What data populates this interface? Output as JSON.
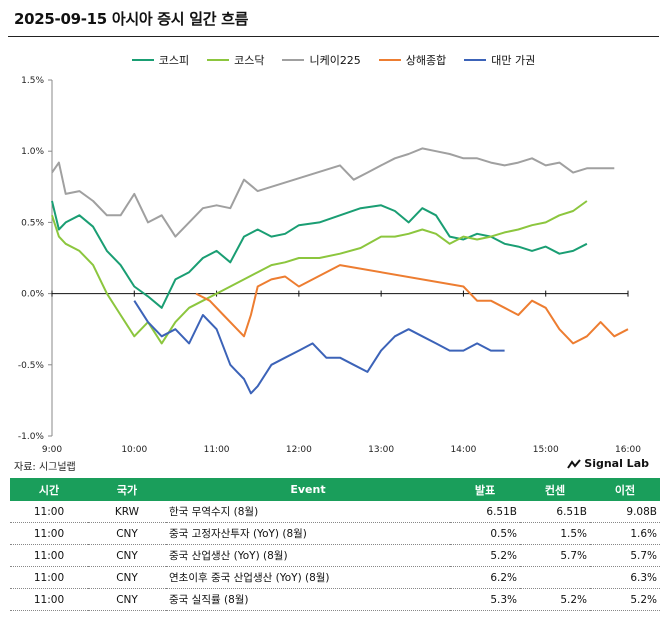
{
  "title": "2025-09-15 아시아 증시 일간 흐름",
  "source": "자료: 시그널랩",
  "brand": "Signal Lab",
  "chart_data": {
    "type": "line",
    "title": "",
    "xlabel": "",
    "ylabel": "",
    "xlim": [
      "9:00",
      "16:00"
    ],
    "ylim": [
      -1.0,
      1.5
    ],
    "x_ticks": [
      "9:00",
      "10:00",
      "11:00",
      "12:00",
      "13:00",
      "14:00",
      "15:00",
      "16:00"
    ],
    "y_ticks": [
      "1.5%",
      "1.0%",
      "0.5%",
      "0.0%",
      "-0.5%",
      "-1.0%"
    ],
    "legend": "top",
    "series": [
      {
        "name": "코스피",
        "color": "#1a9e73",
        "x": [
          "9:00",
          "9:05",
          "9:10",
          "9:20",
          "9:30",
          "9:40",
          "9:50",
          "10:00",
          "10:10",
          "10:20",
          "10:30",
          "10:40",
          "10:50",
          "11:00",
          "11:10",
          "11:20",
          "11:30",
          "11:40",
          "11:50",
          "12:00",
          "12:15",
          "12:30",
          "12:45",
          "13:00",
          "13:10",
          "13:20",
          "13:30",
          "13:40",
          "13:50",
          "14:00",
          "14:10",
          "14:20",
          "14:30",
          "14:40",
          "14:50",
          "15:00",
          "15:10",
          "15:20",
          "15:30"
        ],
        "y": [
          0.65,
          0.45,
          0.5,
          0.55,
          0.47,
          0.3,
          0.2,
          0.05,
          -0.02,
          -0.1,
          0.1,
          0.15,
          0.25,
          0.3,
          0.22,
          0.4,
          0.45,
          0.4,
          0.42,
          0.48,
          0.5,
          0.55,
          0.6,
          0.62,
          0.58,
          0.5,
          0.6,
          0.55,
          0.4,
          0.38,
          0.42,
          0.4,
          0.35,
          0.33,
          0.3,
          0.33,
          0.28,
          0.3,
          0.35
        ]
      },
      {
        "name": "코스닥",
        "color": "#8cc63e",
        "x": [
          "9:00",
          "9:05",
          "9:10",
          "9:20",
          "9:30",
          "9:40",
          "9:50",
          "10:00",
          "10:10",
          "10:20",
          "10:30",
          "10:40",
          "10:50",
          "11:00",
          "11:10",
          "11:20",
          "11:30",
          "11:40",
          "11:50",
          "12:00",
          "12:15",
          "12:30",
          "12:45",
          "13:00",
          "13:10",
          "13:20",
          "13:30",
          "13:40",
          "13:50",
          "14:00",
          "14:10",
          "14:20",
          "14:30",
          "14:40",
          "14:50",
          "15:00",
          "15:10",
          "15:20",
          "15:30"
        ],
        "y": [
          0.55,
          0.4,
          0.35,
          0.3,
          0.2,
          0.0,
          -0.15,
          -0.3,
          -0.2,
          -0.35,
          -0.2,
          -0.1,
          -0.05,
          0.0,
          0.05,
          0.1,
          0.15,
          0.2,
          0.22,
          0.25,
          0.25,
          0.28,
          0.32,
          0.4,
          0.4,
          0.42,
          0.45,
          0.42,
          0.35,
          0.4,
          0.38,
          0.4,
          0.43,
          0.45,
          0.48,
          0.5,
          0.55,
          0.58,
          0.65
        ]
      },
      {
        "name": "니케이225",
        "color": "#a0a0a0",
        "x": [
          "9:00",
          "9:05",
          "9:10",
          "9:20",
          "9:30",
          "9:40",
          "9:50",
          "10:00",
          "10:10",
          "10:20",
          "10:30",
          "10:40",
          "10:50",
          "11:00",
          "11:10",
          "11:20",
          "11:30",
          "12:30",
          "12:40",
          "12:50",
          "13:00",
          "13:10",
          "13:20",
          "13:30",
          "13:40",
          "13:50",
          "14:00",
          "14:10",
          "14:20",
          "14:30",
          "14:40",
          "14:50",
          "15:00",
          "15:10",
          "15:20",
          "15:30",
          "15:40",
          "15:50"
        ],
        "y": [
          0.85,
          0.92,
          0.7,
          0.72,
          0.65,
          0.55,
          0.55,
          0.7,
          0.5,
          0.55,
          0.4,
          0.5,
          0.6,
          0.62,
          0.6,
          0.8,
          0.72,
          0.9,
          0.8,
          0.85,
          0.9,
          0.95,
          0.98,
          1.02,
          1.0,
          0.98,
          0.95,
          0.95,
          0.92,
          0.9,
          0.92,
          0.95,
          0.9,
          0.92,
          0.85,
          0.88,
          0.88,
          0.88
        ]
      },
      {
        "name": "상해종합",
        "color": "#ed7d31",
        "x": [
          "10:45",
          "10:55",
          "11:05",
          "11:15",
          "11:20",
          "11:25",
          "11:30",
          "11:40",
          "11:50",
          "12:00",
          "12:10",
          "12:20",
          "12:30",
          "14:00",
          "14:10",
          "14:20",
          "14:30",
          "14:40",
          "14:50",
          "15:00",
          "15:10",
          "15:20",
          "15:30",
          "15:40",
          "15:50",
          "16:00"
        ],
        "y": [
          0.0,
          -0.05,
          -0.15,
          -0.25,
          -0.3,
          -0.15,
          0.05,
          0.1,
          0.12,
          0.05,
          0.1,
          0.15,
          0.2,
          0.05,
          -0.05,
          -0.05,
          -0.1,
          -0.15,
          -0.05,
          -0.1,
          -0.25,
          -0.35,
          -0.3,
          -0.2,
          -0.3,
          -0.25
        ]
      },
      {
        "name": "대만 가권",
        "color": "#3c63b8",
        "x": [
          "10:00",
          "10:10",
          "10:20",
          "10:30",
          "10:40",
          "10:50",
          "11:00",
          "11:10",
          "11:15",
          "11:20",
          "11:25",
          "11:30",
          "11:40",
          "11:50",
          "12:00",
          "12:10",
          "12:20",
          "12:30",
          "12:40",
          "12:50",
          "13:00",
          "13:10",
          "13:20",
          "13:30",
          "13:40",
          "13:50",
          "14:00",
          "14:10",
          "14:20",
          "14:30"
        ],
        "y": [
          -0.05,
          -0.2,
          -0.3,
          -0.25,
          -0.35,
          -0.15,
          -0.25,
          -0.5,
          -0.55,
          -0.6,
          -0.7,
          -0.65,
          -0.5,
          -0.45,
          -0.4,
          -0.35,
          -0.45,
          -0.45,
          -0.5,
          -0.55,
          -0.4,
          -0.3,
          -0.25,
          -0.3,
          -0.35,
          -0.4,
          -0.4,
          -0.35,
          -0.4,
          -0.4
        ]
      }
    ]
  },
  "events_table": {
    "headers": [
      "시간",
      "국가",
      "Event",
      "발표",
      "컨센",
      "이전"
    ],
    "rows": [
      [
        "11:00",
        "KRW",
        "한국 무역수지 (8월)",
        "6.51B",
        "6.51B",
        "9.08B"
      ],
      [
        "11:00",
        "CNY",
        "중국 고정자산투자 (YoY) (8월)",
        "0.5%",
        "1.5%",
        "1.6%"
      ],
      [
        "11:00",
        "CNY",
        "중국 산업생산 (YoY) (8월)",
        "5.2%",
        "5.7%",
        "5.7%"
      ],
      [
        "11:00",
        "CNY",
        "연초이후 중국 산업생산 (YoY) (8월)",
        "6.2%",
        "",
        "6.3%"
      ],
      [
        "11:00",
        "CNY",
        "중국 실직률 (8월)",
        "5.3%",
        "5.2%",
        "5.2%"
      ]
    ]
  }
}
